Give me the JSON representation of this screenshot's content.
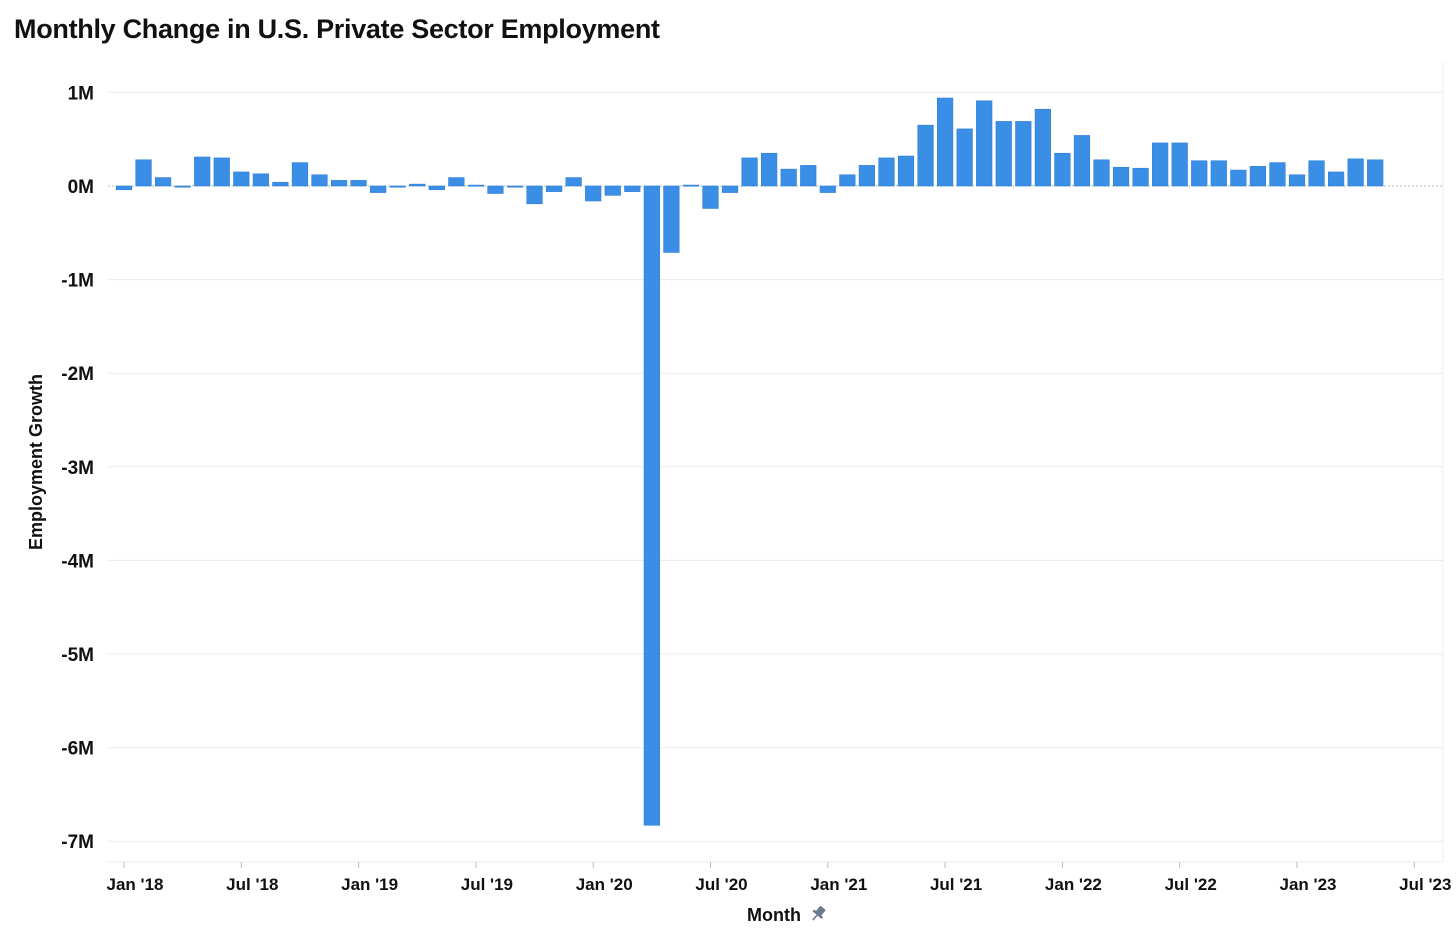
{
  "title": "Monthly Change in U.S. Private Sector Employment",
  "chart_data": {
    "type": "bar",
    "title": "Monthly Change in U.S. Private Sector Employment",
    "xlabel": "Month",
    "ylabel": "Employment Growth",
    "ylim": [
      -7200000,
      1300000
    ],
    "yticks": [
      1000000,
      0,
      -1000000,
      -2000000,
      -3000000,
      -4000000,
      -5000000,
      -6000000,
      -7000000
    ],
    "ytick_labels": [
      "1M",
      "0M",
      "-1M",
      "-2M",
      "-3M",
      "-4M",
      "-5M",
      "-6M",
      "-7M"
    ],
    "xtick_labels": [
      "Jan '18",
      "Jul '18",
      "Jan '19",
      "Jul '19",
      "Jan '20",
      "Jul '20",
      "Jan '21",
      "Jul '21",
      "Jan '22",
      "Jul '22",
      "Jan '23",
      "Jul '23"
    ],
    "xlabel_icon": "pin-icon",
    "bar_color": "#3a8ee6",
    "grid": true,
    "categories": [
      "2018-01",
      "2018-02",
      "2018-03",
      "2018-04",
      "2018-05",
      "2018-06",
      "2018-07",
      "2018-08",
      "2018-09",
      "2018-10",
      "2018-11",
      "2018-12",
      "2019-01",
      "2019-02",
      "2019-03",
      "2019-04",
      "2019-05",
      "2019-06",
      "2019-07",
      "2019-08",
      "2019-09",
      "2019-10",
      "2019-11",
      "2019-12",
      "2020-01",
      "2020-02",
      "2020-03",
      "2020-04",
      "2020-05",
      "2020-06",
      "2020-07",
      "2020-08",
      "2020-09",
      "2020-10",
      "2020-11",
      "2020-12",
      "2021-01",
      "2021-02",
      "2021-03",
      "2021-04",
      "2021-05",
      "2021-06",
      "2021-07",
      "2021-08",
      "2021-09",
      "2021-10",
      "2021-11",
      "2021-12",
      "2022-01",
      "2022-02",
      "2022-03",
      "2022-04",
      "2022-05",
      "2022-06",
      "2022-07",
      "2022-08",
      "2022-09",
      "2022-10",
      "2022-11",
      "2022-12",
      "2023-01",
      "2023-02",
      "2023-03",
      "2023-04",
      "2023-05"
    ],
    "values": [
      -40000,
      280000,
      90000,
      -10000,
      310000,
      300000,
      150000,
      130000,
      40000,
      250000,
      120000,
      60000,
      60000,
      -70000,
      -10000,
      20000,
      -40000,
      90000,
      10000,
      -80000,
      -10000,
      -190000,
      -60000,
      90000,
      -160000,
      -100000,
      -60000,
      -6830000,
      -710000,
      10000,
      -240000,
      -70000,
      300000,
      350000,
      180000,
      220000,
      -70000,
      120000,
      220000,
      300000,
      320000,
      650000,
      940000,
      610000,
      910000,
      690000,
      690000,
      820000,
      350000,
      540000,
      280000,
      200000,
      190000,
      460000,
      460000,
      270000,
      270000,
      170000,
      210000,
      250000,
      120000,
      270000,
      150000,
      290000,
      280000
    ]
  }
}
